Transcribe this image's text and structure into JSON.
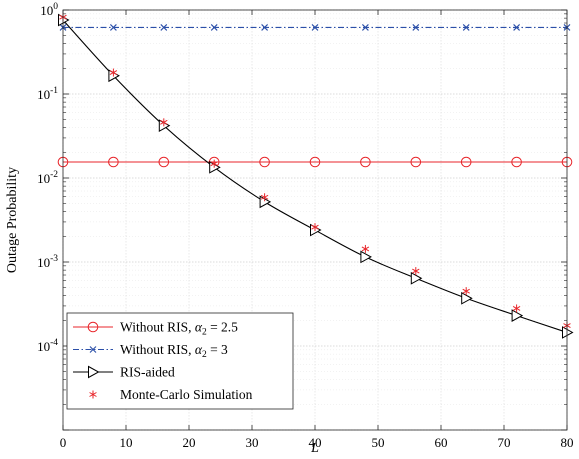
{
  "chart_data": {
    "type": "line",
    "xlabel": "L",
    "ylabel": "Outage Probability",
    "xlim": [
      0,
      80
    ],
    "ylim": [
      1e-05,
      1
    ],
    "yscale": "log",
    "grid": true,
    "legend_position": "bottom-left",
    "x_ticks": [
      "0",
      "10",
      "20",
      "30",
      "40",
      "50",
      "60",
      "70",
      "80"
    ],
    "y_ticks": [
      {
        "base": "10",
        "exp": "0"
      },
      {
        "base": "10",
        "exp": "-1"
      },
      {
        "base": "10",
        "exp": "-2"
      },
      {
        "base": "10",
        "exp": "-3"
      },
      {
        "base": "10",
        "exp": "-4"
      }
    ],
    "series": [
      {
        "name_prefix": "Without RIS, ",
        "name_symbol": "α",
        "name_sub": "2",
        "name_suffix": " = 2.5",
        "color": "#e8262b",
        "marker": "circle",
        "line": "solid",
        "x": [
          0,
          8,
          16,
          24,
          32,
          40,
          48,
          56,
          64,
          72,
          80
        ],
        "values": [
          0.0155,
          0.0155,
          0.0155,
          0.0155,
          0.0155,
          0.0155,
          0.0155,
          0.0155,
          0.0155,
          0.0155,
          0.0155
        ]
      },
      {
        "name_prefix": "Without RIS, ",
        "name_symbol": "α",
        "name_sub": "2",
        "name_suffix": " = 3",
        "color": "#2b4fa8",
        "marker": "x",
        "line": "dashdot",
        "x": [
          0,
          8,
          16,
          24,
          32,
          40,
          48,
          56,
          64,
          72,
          80
        ],
        "values": [
          0.62,
          0.62,
          0.62,
          0.62,
          0.62,
          0.62,
          0.62,
          0.62,
          0.62,
          0.62,
          0.62
        ]
      },
      {
        "name_prefix": "RIS-aided",
        "name_symbol": "",
        "name_sub": "",
        "name_suffix": "",
        "color": "#000000",
        "marker": "triangle-right",
        "line": "solid",
        "x": [
          0,
          8,
          16,
          24,
          32,
          40,
          48,
          56,
          64,
          72,
          80
        ],
        "values": [
          0.76,
          0.165,
          0.042,
          0.0134,
          0.0052,
          0.0024,
          0.00115,
          0.00064,
          0.00037,
          0.00023,
          0.000145
        ]
      },
      {
        "name_prefix": "Monte-Carlo Simulation",
        "name_symbol": "",
        "name_sub": "",
        "name_suffix": "",
        "color": "#e8262b",
        "marker": "asterisk",
        "line": "none",
        "x": [
          0,
          8,
          16,
          24,
          32,
          40,
          48,
          56,
          64,
          72,
          80
        ],
        "values": [
          0.82,
          0.18,
          0.046,
          0.0148,
          0.0059,
          0.0026,
          0.00143,
          0.00078,
          0.00045,
          0.00028,
          0.000175
        ]
      }
    ]
  }
}
